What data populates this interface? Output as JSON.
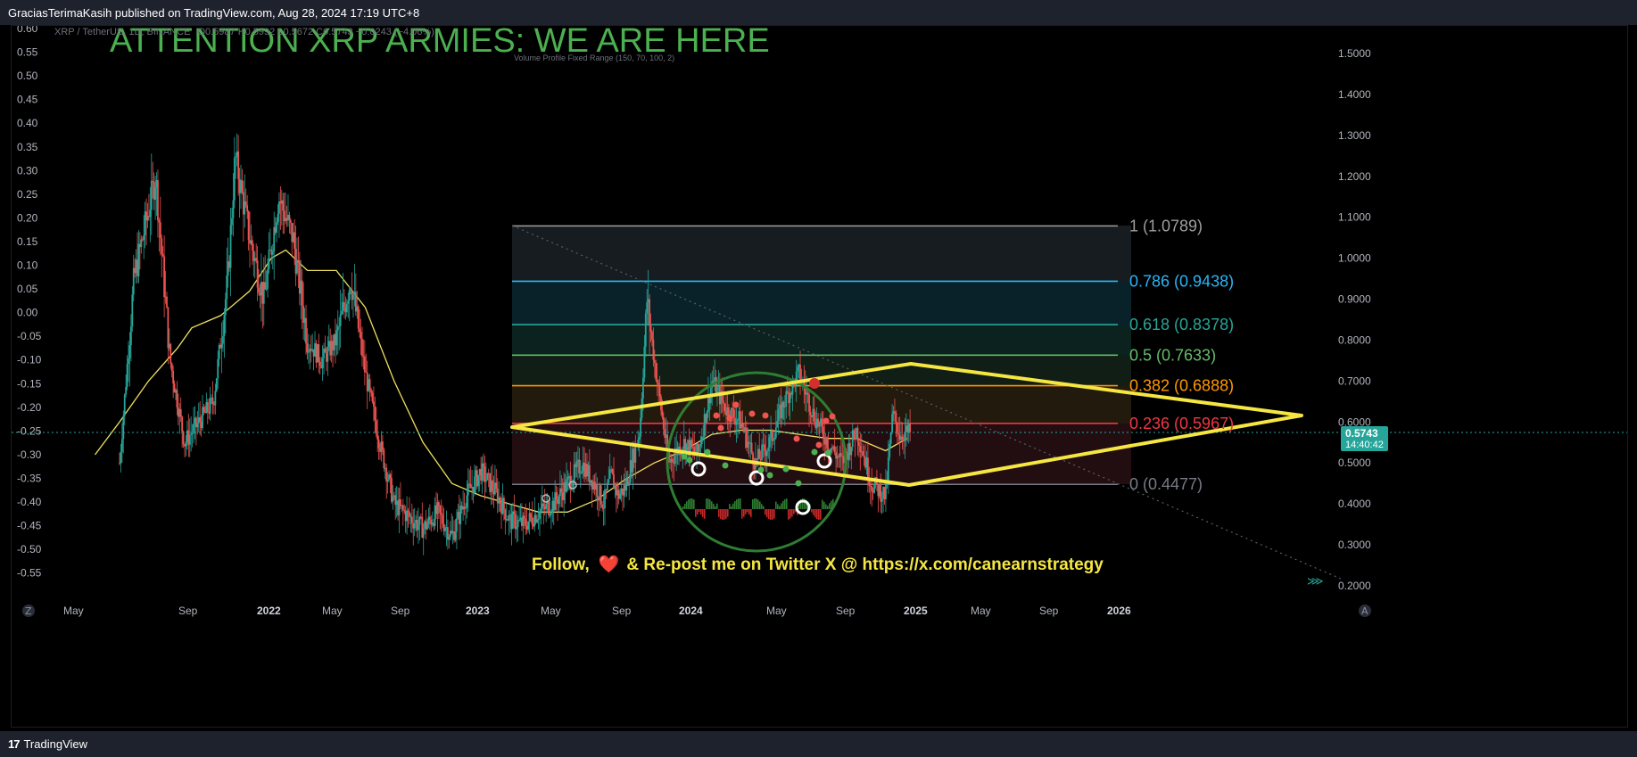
{
  "header": {
    "publish_info": "GraciasTerimaKasih published on TradingView.com, Aug 28, 2024 17:19 UTC+8"
  },
  "footer": {
    "brand": "TradingView",
    "logo_glyph": "17"
  },
  "chart_legend": {
    "symbol": "XRP / TetherUS, 1D, BINANCE",
    "ohlc": "O0.5987 H0.5992 L0.5672 C0.5743 −0.0243 (−4.06%)",
    "indicator": "Volume Profile Fixed Range (150, 70, 100, 2)"
  },
  "annotations": {
    "headline": "ATTENTION XRP ARMIES: WE ARE HERE",
    "follow_prefix": "Follow,",
    "heart": "❤️",
    "follow_suffix": "& Re-post me on Twitter X @ https://x.com/canearnstrategy"
  },
  "price_tag": {
    "price": "0.5743",
    "countdown": "14:40:42",
    "color": "#26a69a"
  },
  "chart_data": {
    "type": "candlestick",
    "title": "ATTENTION XRP ARMIES: WE ARE HERE",
    "symbol": "XRP / TetherUS",
    "timeframe": "1D",
    "exchange": "BINANCE",
    "x_ticks": [
      "May",
      "Sep",
      "2022",
      "May",
      "Sep",
      "2023",
      "May",
      "Sep",
      "2024",
      "May",
      "Sep",
      "2025",
      "May",
      "Sep",
      "2026"
    ],
    "right_axis": {
      "label": "price",
      "ticks": [
        "1.5000",
        "1.4000",
        "1.3000",
        "1.2000",
        "1.1000",
        "1.0000",
        "0.9000",
        "0.8000",
        "0.7000",
        "0.6000",
        "0.5000",
        "0.4000",
        "0.3000",
        "0.2000"
      ],
      "ylim": [
        0.17,
        1.58
      ]
    },
    "left_axis": {
      "ticks": [
        "0.60",
        "0.55",
        "0.50",
        "0.45",
        "0.40",
        "0.35",
        "0.30",
        "0.25",
        "0.20",
        "0.15",
        "0.10",
        "0.05",
        "0.00",
        "-0.05",
        "-0.10",
        "-0.15",
        "-0.20",
        "-0.25",
        "-0.30",
        "-0.35",
        "-0.40",
        "-0.45",
        "-0.50",
        "-0.55"
      ]
    },
    "fibonacci": [
      {
        "level": "1",
        "price": 1.0789,
        "label": "1 (1.0789)",
        "color": "#9e9e9e"
      },
      {
        "level": "0.786",
        "price": 0.9438,
        "label": "0.786 (0.9438)",
        "color": "#29b6f6"
      },
      {
        "level": "0.618",
        "price": 0.8378,
        "label": "0.618 (0.8378)",
        "color": "#26a69a"
      },
      {
        "level": "0.5",
        "price": 0.7633,
        "label": "0.5 (0.7633)",
        "color": "#66bb6a"
      },
      {
        "level": "0.382",
        "price": 0.6888,
        "label": "0.382 (0.6888)",
        "color": "#ff9800"
      },
      {
        "level": "0.236",
        "price": 0.5967,
        "label": "0.236 (0.5967)",
        "color": "#f23645"
      },
      {
        "level": "0",
        "price": 0.4477,
        "label": "0 (0.4477)",
        "color": "#787b86"
      }
    ],
    "last_price": 0.5743,
    "price_path": [
      [
        0.05,
        0.5
      ],
      [
        0.06,
        0.95
      ],
      [
        0.075,
        1.2
      ],
      [
        0.085,
        0.75
      ],
      [
        0.095,
        0.55
      ],
      [
        0.105,
        0.6
      ],
      [
        0.115,
        0.65
      ],
      [
        0.125,
        0.95
      ],
      [
        0.13,
        1.25
      ],
      [
        0.14,
        1.05
      ],
      [
        0.15,
        0.9
      ],
      [
        0.16,
        1.15
      ],
      [
        0.17,
        1.05
      ],
      [
        0.18,
        0.8
      ],
      [
        0.19,
        0.75
      ],
      [
        0.2,
        0.8
      ],
      [
        0.21,
        0.95
      ],
      [
        0.22,
        0.72
      ],
      [
        0.23,
        0.55
      ],
      [
        0.24,
        0.4
      ],
      [
        0.25,
        0.37
      ],
      [
        0.26,
        0.34
      ],
      [
        0.27,
        0.38
      ],
      [
        0.28,
        0.32
      ],
      [
        0.29,
        0.42
      ],
      [
        0.3,
        0.48
      ],
      [
        0.31,
        0.43
      ],
      [
        0.32,
        0.36
      ],
      [
        0.33,
        0.35
      ],
      [
        0.34,
        0.38
      ],
      [
        0.35,
        0.4
      ],
      [
        0.36,
        0.45
      ],
      [
        0.37,
        0.5
      ],
      [
        0.38,
        0.44
      ],
      [
        0.385,
        0.4
      ],
      [
        0.39,
        0.47
      ],
      [
        0.395,
        0.42
      ],
      [
        0.4,
        0.44
      ],
      [
        0.41,
        0.58
      ],
      [
        0.415,
        0.9
      ],
      [
        0.42,
        0.75
      ],
      [
        0.43,
        0.5
      ],
      [
        0.44,
        0.55
      ],
      [
        0.45,
        0.52
      ],
      [
        0.46,
        0.7
      ],
      [
        0.47,
        0.63
      ],
      [
        0.48,
        0.6
      ],
      [
        0.49,
        0.5
      ],
      [
        0.5,
        0.55
      ],
      [
        0.51,
        0.65
      ],
      [
        0.52,
        0.72
      ],
      [
        0.53,
        0.62
      ],
      [
        0.54,
        0.55
      ],
      [
        0.55,
        0.5
      ],
      [
        0.56,
        0.58
      ],
      [
        0.565,
        0.52
      ],
      [
        0.57,
        0.45
      ],
      [
        0.58,
        0.42
      ],
      [
        0.585,
        0.62
      ],
      [
        0.59,
        0.57
      ],
      [
        0.597,
        0.5743
      ]
    ],
    "moving_average": [
      [
        0.033,
        0.52
      ],
      [
        0.05,
        0.6
      ],
      [
        0.07,
        0.7
      ],
      [
        0.09,
        0.78
      ],
      [
        0.1,
        0.83
      ],
      [
        0.12,
        0.86
      ],
      [
        0.14,
        0.92
      ],
      [
        0.155,
        1.0
      ],
      [
        0.165,
        1.02
      ],
      [
        0.18,
        0.97
      ],
      [
        0.2,
        0.97
      ],
      [
        0.22,
        0.88
      ],
      [
        0.24,
        0.7
      ],
      [
        0.26,
        0.55
      ],
      [
        0.28,
        0.45
      ],
      [
        0.3,
        0.42
      ],
      [
        0.32,
        0.4
      ],
      [
        0.34,
        0.38
      ],
      [
        0.36,
        0.38
      ],
      [
        0.38,
        0.41
      ],
      [
        0.4,
        0.46
      ],
      [
        0.42,
        0.5
      ],
      [
        0.44,
        0.53
      ],
      [
        0.46,
        0.57
      ],
      [
        0.48,
        0.58
      ],
      [
        0.5,
        0.58
      ],
      [
        0.52,
        0.57
      ],
      [
        0.54,
        0.56
      ],
      [
        0.56,
        0.56
      ],
      [
        0.58,
        0.53
      ],
      [
        0.595,
        0.56
      ]
    ]
  }
}
